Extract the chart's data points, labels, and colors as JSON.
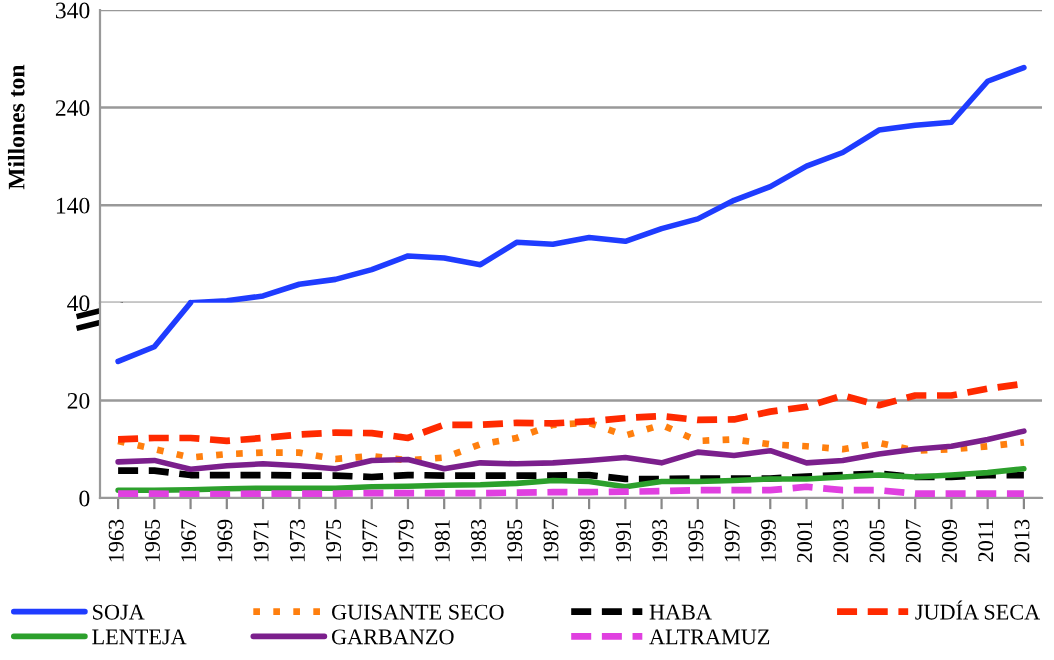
{
  "chart_data": [
    {
      "type": "line",
      "ylabel": "Millones ton",
      "tick_labels": "y",
      "categories": [
        "1963",
        "1965",
        "1967",
        "1969",
        "1971",
        "1973",
        "1975",
        "1977",
        "1979",
        "1981",
        "1983",
        "1985",
        "1987",
        "1989",
        "1991",
        "1993",
        "1995",
        "1997",
        "1999",
        "2001",
        "2003",
        "2005",
        "2007",
        "2009",
        "2011",
        "2013"
      ],
      "ylim": [
        40,
        340
      ],
      "yticks": [
        40,
        140,
        240,
        340
      ],
      "grid": "y",
      "series": [
        {
          "name": "SOJA",
          "color": "#1f3cff",
          "line_style": "solid",
          "values": [
            null,
            null,
            40,
            42,
            47,
            59,
            64,
            74,
            88,
            86,
            79,
            102,
            100,
            107,
            103,
            116,
            126,
            145,
            159,
            180,
            194,
            217,
            222,
            225,
            267,
            281
          ]
        }
      ]
    },
    {
      "type": "line",
      "categories": [
        "1963",
        "1965",
        "1967",
        "1969",
        "1971",
        "1973",
        "1975",
        "1977",
        "1979",
        "1981",
        "1983",
        "1985",
        "1987",
        "1989",
        "1991",
        "1993",
        "1995",
        "1997",
        "1999",
        "2001",
        "2003",
        "2005",
        "2007",
        "2009",
        "2011",
        "2013"
      ],
      "ylim": [
        0,
        40
      ],
      "yticks": [
        0,
        20
      ],
      "grid": "y",
      "legend": "bottom",
      "series": [
        {
          "color": "#1f3cff",
          "line_style": "solid",
          "values": [
            28,
            31,
            40,
            null,
            null,
            null,
            null,
            null,
            null,
            null,
            null,
            null,
            null,
            null,
            null,
            null,
            null,
            null,
            null,
            null,
            null,
            null,
            null,
            null,
            null,
            null
          ]
        },
        {
          "name": "GUISANTE SECO",
          "color": "#ff7f0e",
          "line_style": "dotted",
          "values": [
            11.7,
            10,
            8.3,
            9,
            9.3,
            9.3,
            8,
            8.6,
            7.7,
            8.3,
            11,
            12.3,
            15,
            15.4,
            12.8,
            15,
            11.7,
            12,
            11,
            10.6,
            10,
            11.3,
            9.7,
            10,
            10.6,
            11.4
          ]
        },
        {
          "name": "HABA",
          "color": "#000000",
          "line_style": "dashed",
          "values": [
            5.6,
            5.6,
            4.7,
            4.7,
            4.7,
            4.6,
            4.6,
            4.3,
            4.7,
            4.6,
            4.6,
            4.6,
            4.6,
            4.7,
            3.9,
            3.9,
            4,
            4,
            4,
            4.4,
            4.7,
            5,
            4.3,
            4.3,
            4.7,
            4.7
          ]
        },
        {
          "name": "JUDÍA SECA",
          "color": "#ff2a00",
          "line_style": "dashed",
          "values": [
            12,
            12.3,
            12.3,
            11.7,
            12.3,
            13,
            13.4,
            13.3,
            12.3,
            15,
            15,
            15.4,
            15.3,
            15.7,
            16.4,
            16.8,
            16,
            16.1,
            17.7,
            18.7,
            21,
            19,
            21,
            21,
            22.4,
            23.4
          ]
        },
        {
          "name": "LENTEJA",
          "color": "#2ca02c",
          "line_style": "solid",
          "values": [
            1.6,
            1.6,
            1.7,
            1.9,
            2,
            2,
            2,
            2.3,
            2.4,
            2.6,
            2.7,
            3,
            3.6,
            3.4,
            2.3,
            3.4,
            3.4,
            3.6,
            3.9,
            3.9,
            4.3,
            4.7,
            4.3,
            4.7,
            5.2,
            6
          ]
        },
        {
          "name": "GARBANZO",
          "color": "#7b1f8c",
          "line_style": "solid",
          "values": [
            7.4,
            7.7,
            5.9,
            6.6,
            7,
            6.6,
            6,
            7.7,
            7.9,
            6,
            7.2,
            7,
            7.2,
            7.7,
            8.3,
            7.2,
            9.4,
            8.7,
            9.7,
            7.2,
            7.7,
            9,
            10,
            10.6,
            12,
            13.7
          ]
        },
        {
          "name": "ALTRAMUZ",
          "color": "#e040e0",
          "line_style": "dashed",
          "values": [
            0.9,
            0.9,
            0.8,
            0.8,
            0.9,
            0.9,
            0.9,
            1,
            1,
            1,
            1,
            1.1,
            1.2,
            1.2,
            1.3,
            1.4,
            1.6,
            1.6,
            1.6,
            2.3,
            1.6,
            1.6,
            0.9,
            0.9,
            0.9,
            0.9
          ]
        }
      ]
    }
  ]
}
